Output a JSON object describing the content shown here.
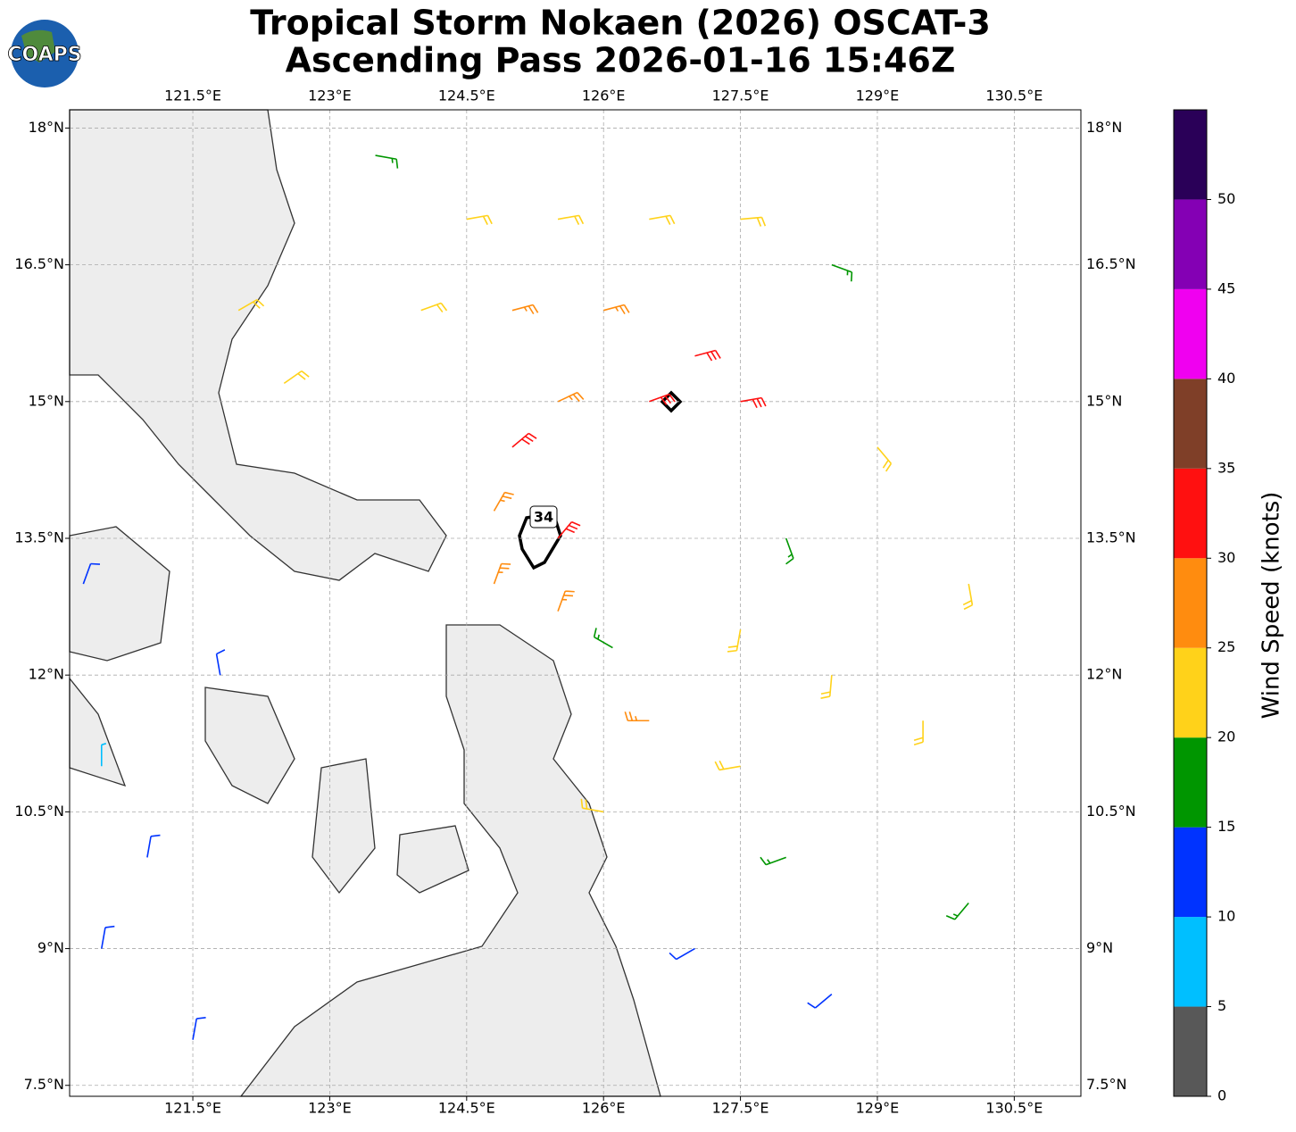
{
  "title": [
    "Tropical Storm Nokaen (2026) OSCAT-3",
    "Ascending Pass 2026-01-16 15:46Z"
  ],
  "logo_text": "COAPS",
  "contour_label": "34",
  "map": {
    "lonlim": [
      120.15,
      131.23
    ],
    "latlim": [
      7.38,
      18.2
    ],
    "lonticks": [
      {
        "value": 121.5,
        "label": "121.5°E"
      },
      {
        "value": 123,
        "label": "123°E"
      },
      {
        "value": 124.5,
        "label": "124.5°E"
      },
      {
        "value": 126,
        "label": "126°E"
      },
      {
        "value": 127.5,
        "label": "127.5°E"
      },
      {
        "value": 129,
        "label": "129°E"
      },
      {
        "value": 130.5,
        "label": "130.5°E"
      }
    ],
    "latticks": [
      {
        "value": 7.5,
        "label": "7.5°N"
      },
      {
        "value": 9,
        "label": "9°N"
      },
      {
        "value": 10.5,
        "label": "10.5°N"
      },
      {
        "value": 12,
        "label": "12°N"
      },
      {
        "value": 13.5,
        "label": "13.5°N"
      },
      {
        "value": 15,
        "label": "15°N"
      },
      {
        "value": 16.5,
        "label": "16.5°N"
      },
      {
        "value": 18,
        "label": "18°N"
      }
    ],
    "grid": true,
    "barbs": [
      [
        124.5,
        17,
        22,
        80
      ],
      [
        125.5,
        17,
        23,
        80
      ],
      [
        126.5,
        17,
        24,
        80
      ],
      [
        127.5,
        17,
        22,
        85
      ],
      [
        128.5,
        16.5,
        18,
        110
      ],
      [
        124,
        16,
        23,
        70
      ],
      [
        125,
        16,
        25,
        75
      ],
      [
        126,
        16,
        27,
        75
      ],
      [
        127,
        15.5,
        30,
        75
      ],
      [
        126.5,
        15,
        33,
        70
      ],
      [
        127.5,
        15,
        31,
        80
      ],
      [
        125.5,
        15,
        28,
        65
      ],
      [
        125,
        14.5,
        32,
        50
      ],
      [
        124.8,
        13.8,
        27,
        30
      ],
      [
        125.5,
        13.5,
        30,
        40
      ],
      [
        124.8,
        13,
        26,
        20
      ],
      [
        125.5,
        12.7,
        28,
        20
      ],
      [
        127.5,
        12.5,
        20,
        190
      ],
      [
        128.5,
        12,
        22,
        185
      ],
      [
        129.5,
        11.5,
        20,
        180
      ],
      [
        128,
        13.5,
        18,
        160
      ],
      [
        129,
        14.5,
        22,
        140
      ],
      [
        130,
        13,
        22,
        170
      ],
      [
        126.5,
        11.5,
        26,
        270
      ],
      [
        127.5,
        11,
        24,
        260
      ],
      [
        126,
        10.5,
        22,
        280
      ],
      [
        128,
        10,
        18,
        250
      ],
      [
        127,
        9,
        14,
        240
      ],
      [
        128.5,
        8.5,
        12,
        230
      ],
      [
        130,
        9.5,
        16,
        220
      ],
      [
        120.5,
        11,
        8,
        0
      ],
      [
        121,
        10,
        12,
        10
      ],
      [
        120.5,
        9,
        12,
        10
      ],
      [
        121.5,
        8,
        14,
        10
      ],
      [
        121.8,
        12,
        10,
        350
      ],
      [
        120.3,
        13,
        13,
        20
      ],
      [
        126.1,
        12.3,
        17,
        300
      ],
      [
        122,
        16,
        20,
        60
      ],
      [
        122.5,
        15.2,
        22,
        55
      ],
      [
        123.5,
        17.7,
        18,
        100
      ]
    ]
  },
  "colorbar": {
    "label": "Wind Speed (knots)",
    "lim": [
      0,
      55
    ],
    "ticks": [
      0,
      5,
      10,
      15,
      20,
      25,
      30,
      35,
      40,
      45,
      50
    ],
    "levels": [
      0,
      5,
      10,
      15,
      20,
      25,
      30,
      35,
      40,
      45,
      50,
      55
    ],
    "colors": [
      "#585858",
      "#00bfff",
      "#0033ff",
      "#009600",
      "#ffd21a",
      "#ff8c0f",
      "#ff1010",
      "#7f3f28",
      "#f000f0",
      "#8400b4",
      "#2a0058"
    ]
  }
}
